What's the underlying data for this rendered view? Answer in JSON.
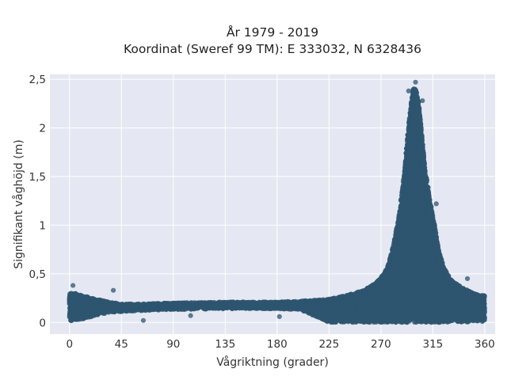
{
  "chart_data": {
    "type": "scatter",
    "title": "År 1979 - 2019",
    "subtitle": "Koordinat (Sweref 99 TM): E 333032, N 6328436",
    "xlabel": "Vågriktning (grader)",
    "ylabel": "Signifikant våghöjd (m)",
    "xlim": [
      -17,
      369
    ],
    "ylim": [
      -0.12,
      2.55
    ],
    "xticks": [
      0,
      45,
      90,
      135,
      180,
      225,
      270,
      315,
      360
    ],
    "xtick_labels": [
      "0",
      "45",
      "90",
      "135",
      "180",
      "225",
      "270",
      "315",
      "360"
    ],
    "yticks": [
      0,
      0.5,
      1,
      1.5,
      2,
      2.5
    ],
    "ytick_labels": [
      "0",
      "0,5",
      "1",
      "1,5",
      "2",
      "2,5"
    ],
    "grid": true,
    "colors": {
      "plot_bg": "#e5e8f2",
      "grid": "#ffffff",
      "marker": "#2e5570"
    },
    "density_profile": {
      "x": [
        0,
        5,
        10,
        20,
        30,
        45,
        60,
        90,
        135,
        180,
        200,
        225,
        240,
        255,
        265,
        270,
        275,
        280,
        285,
        290,
        293,
        296,
        298,
        300,
        302,
        305,
        308,
        312,
        315,
        320,
        325,
        330,
        335,
        340,
        345,
        350,
        355,
        360
      ],
      "y_low": [
        0.01,
        0.02,
        0.03,
        0.06,
        0.09,
        0.11,
        0.12,
        0.13,
        0.14,
        0.14,
        0.13,
        0.0,
        0.0,
        0.0,
        0.0,
        0.0,
        0.0,
        0.0,
        0.0,
        0.0,
        0.0,
        0.0,
        0.0,
        0.0,
        0.0,
        0.0,
        0.0,
        0.0,
        0.0,
        0.0,
        0.0,
        0.0,
        0.0,
        0.0,
        0.0,
        0.01,
        0.01,
        0.01
      ],
      "y_high": [
        0.3,
        0.3,
        0.28,
        0.25,
        0.22,
        0.19,
        0.19,
        0.2,
        0.21,
        0.21,
        0.22,
        0.24,
        0.28,
        0.33,
        0.4,
        0.46,
        0.55,
        0.75,
        1.05,
        1.5,
        1.9,
        2.25,
        2.4,
        2.42,
        2.32,
        2.0,
        1.6,
        1.3,
        1.1,
        0.75,
        0.55,
        0.45,
        0.4,
        0.36,
        0.33,
        0.3,
        0.28,
        0.28
      ]
    },
    "outliers": [
      {
        "x": 3,
        "y": 0.38
      },
      {
        "x": 38,
        "y": 0.33
      },
      {
        "x": 64,
        "y": 0.02
      },
      {
        "x": 105,
        "y": 0.07
      },
      {
        "x": 182,
        "y": 0.06
      },
      {
        "x": 300,
        "y": 2.47
      },
      {
        "x": 294,
        "y": 2.38
      },
      {
        "x": 306,
        "y": 2.28
      },
      {
        "x": 318,
        "y": 1.22
      },
      {
        "x": 345,
        "y": 0.45
      }
    ]
  }
}
